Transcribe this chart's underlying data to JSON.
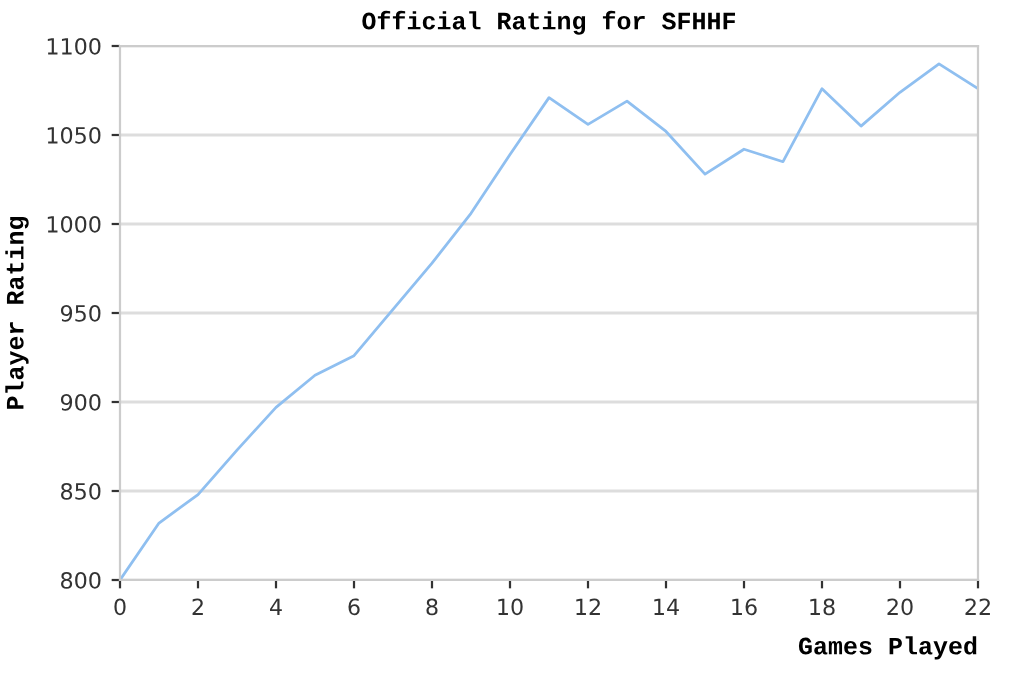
{
  "chart_data": {
    "type": "line",
    "title": "Official Rating for SFHHF",
    "xlabel": "Games Played",
    "ylabel": "Player Rating",
    "x": [
      0,
      1,
      2,
      3,
      4,
      5,
      6,
      7,
      8,
      9,
      10,
      11,
      12,
      13,
      14,
      15,
      16,
      17,
      18,
      19,
      20,
      21,
      22
    ],
    "series": [
      {
        "color": "#8fbff0",
        "values": [
          800,
          832,
          848,
          873,
          897,
          915,
          926,
          952,
          978,
          1006,
          1039,
          1071,
          1056,
          1069,
          1052,
          1028,
          1042,
          1035,
          1076,
          1055,
          1074,
          1090,
          1076
        ]
      }
    ],
    "xlim": [
      0,
      22
    ],
    "xticks": [
      0,
      2,
      4,
      6,
      8,
      10,
      12,
      14,
      16,
      18,
      20,
      22
    ],
    "ylim": [
      800,
      1100
    ],
    "yticks": [
      800,
      850,
      900,
      950,
      1000,
      1050,
      1100
    ],
    "grid": "y",
    "marker": "none",
    "line_style": "solid"
  }
}
